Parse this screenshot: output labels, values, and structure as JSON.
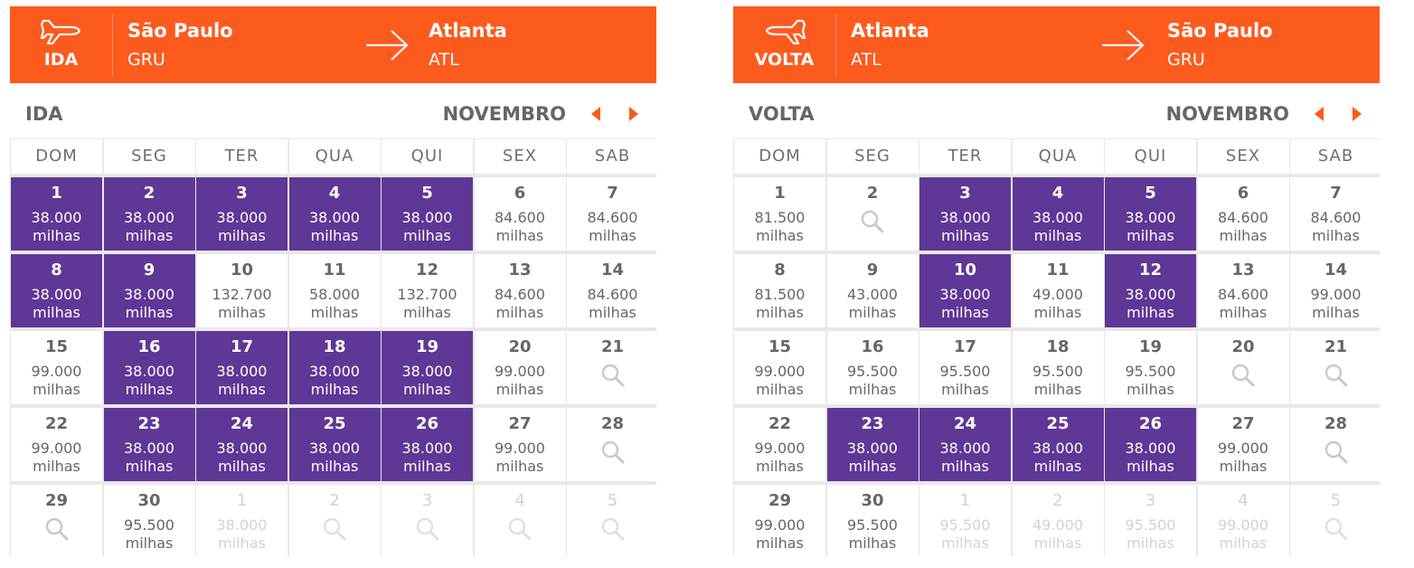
{
  "colors": {
    "banner": "#fd5a1e",
    "fare_highlight": "#5f3797",
    "nav_arrow": "#fd5a1e"
  },
  "weekdays": [
    "DOM",
    "SEG",
    "TER",
    "QUA",
    "QUI",
    "SEX",
    "SAB"
  ],
  "unit": "milhas",
  "panels": [
    {
      "leg_label": "IDA",
      "from": {
        "city": "São Paulo",
        "code": "GRU"
      },
      "to": {
        "city": "Atlanta",
        "code": "ATL"
      },
      "section_label": "IDA",
      "month": "NOVEMBRO",
      "cells": [
        {
          "day": "1",
          "price": "38.000",
          "highlight": true
        },
        {
          "day": "2",
          "price": "38.000",
          "highlight": true
        },
        {
          "day": "3",
          "price": "38.000",
          "highlight": true
        },
        {
          "day": "4",
          "price": "38.000",
          "highlight": true
        },
        {
          "day": "5",
          "price": "38.000",
          "highlight": true
        },
        {
          "day": "6",
          "price": "84.600"
        },
        {
          "day": "7",
          "price": "84.600"
        },
        {
          "day": "8",
          "price": "38.000",
          "highlight": true
        },
        {
          "day": "9",
          "price": "38.000",
          "highlight": true
        },
        {
          "day": "10",
          "price": "132.700"
        },
        {
          "day": "11",
          "price": "58.000"
        },
        {
          "day": "12",
          "price": "132.700"
        },
        {
          "day": "13",
          "price": "84.600"
        },
        {
          "day": "14",
          "price": "84.600"
        },
        {
          "day": "15",
          "price": "99.000"
        },
        {
          "day": "16",
          "price": "38.000",
          "highlight": true
        },
        {
          "day": "17",
          "price": "38.000",
          "highlight": true
        },
        {
          "day": "18",
          "price": "38.000",
          "highlight": true
        },
        {
          "day": "19",
          "price": "38.000",
          "highlight": true
        },
        {
          "day": "20",
          "price": "99.000"
        },
        {
          "day": "21",
          "search": true
        },
        {
          "day": "22",
          "price": "99.000"
        },
        {
          "day": "23",
          "price": "38.000",
          "highlight": true
        },
        {
          "day": "24",
          "price": "38.000",
          "highlight": true
        },
        {
          "day": "25",
          "price": "38.000",
          "highlight": true
        },
        {
          "day": "26",
          "price": "38.000",
          "highlight": true
        },
        {
          "day": "27",
          "price": "99.000"
        },
        {
          "day": "28",
          "search": true
        },
        {
          "day": "29",
          "search": true
        },
        {
          "day": "30",
          "price": "95.500"
        },
        {
          "day": "1",
          "price": "38.000",
          "next_month": true
        },
        {
          "day": "2",
          "search": true,
          "next_month": true
        },
        {
          "day": "3",
          "search": true,
          "next_month": true
        },
        {
          "day": "4",
          "search": true,
          "next_month": true
        },
        {
          "day": "5",
          "search": true,
          "next_month": true
        }
      ]
    },
    {
      "leg_label": "VOLTA",
      "from": {
        "city": "Atlanta",
        "code": "ATL"
      },
      "to": {
        "city": "São Paulo",
        "code": "GRU"
      },
      "section_label": "VOLTA",
      "month": "NOVEMBRO",
      "cells": [
        {
          "day": "1",
          "price": "81.500"
        },
        {
          "day": "2",
          "search": true
        },
        {
          "day": "3",
          "price": "38.000",
          "highlight": true
        },
        {
          "day": "4",
          "price": "38.000",
          "highlight": true
        },
        {
          "day": "5",
          "price": "38.000",
          "highlight": true
        },
        {
          "day": "6",
          "price": "84.600"
        },
        {
          "day": "7",
          "price": "84.600"
        },
        {
          "day": "8",
          "price": "81.500"
        },
        {
          "day": "9",
          "price": "43.000"
        },
        {
          "day": "10",
          "price": "38.000",
          "highlight": true
        },
        {
          "day": "11",
          "price": "49.000"
        },
        {
          "day": "12",
          "price": "38.000",
          "highlight": true
        },
        {
          "day": "13",
          "price": "84.600"
        },
        {
          "day": "14",
          "price": "99.000"
        },
        {
          "day": "15",
          "price": "99.000"
        },
        {
          "day": "16",
          "price": "95.500"
        },
        {
          "day": "17",
          "price": "95.500"
        },
        {
          "day": "18",
          "price": "95.500"
        },
        {
          "day": "19",
          "price": "95.500"
        },
        {
          "day": "20",
          "search": true
        },
        {
          "day": "21",
          "search": true
        },
        {
          "day": "22",
          "price": "99.000"
        },
        {
          "day": "23",
          "price": "38.000",
          "highlight": true
        },
        {
          "day": "24",
          "price": "38.000",
          "highlight": true
        },
        {
          "day": "25",
          "price": "38.000",
          "highlight": true
        },
        {
          "day": "26",
          "price": "38.000",
          "highlight": true
        },
        {
          "day": "27",
          "price": "99.000"
        },
        {
          "day": "28",
          "search": true
        },
        {
          "day": "29",
          "price": "99.000"
        },
        {
          "day": "30",
          "price": "95.500"
        },
        {
          "day": "1",
          "price": "95.500",
          "next_month": true
        },
        {
          "day": "2",
          "price": "49.000",
          "next_month": true
        },
        {
          "day": "3",
          "price": "95.500",
          "next_month": true
        },
        {
          "day": "4",
          "price": "99.000",
          "next_month": true
        },
        {
          "day": "5",
          "search": true,
          "next_month": true
        }
      ]
    }
  ]
}
